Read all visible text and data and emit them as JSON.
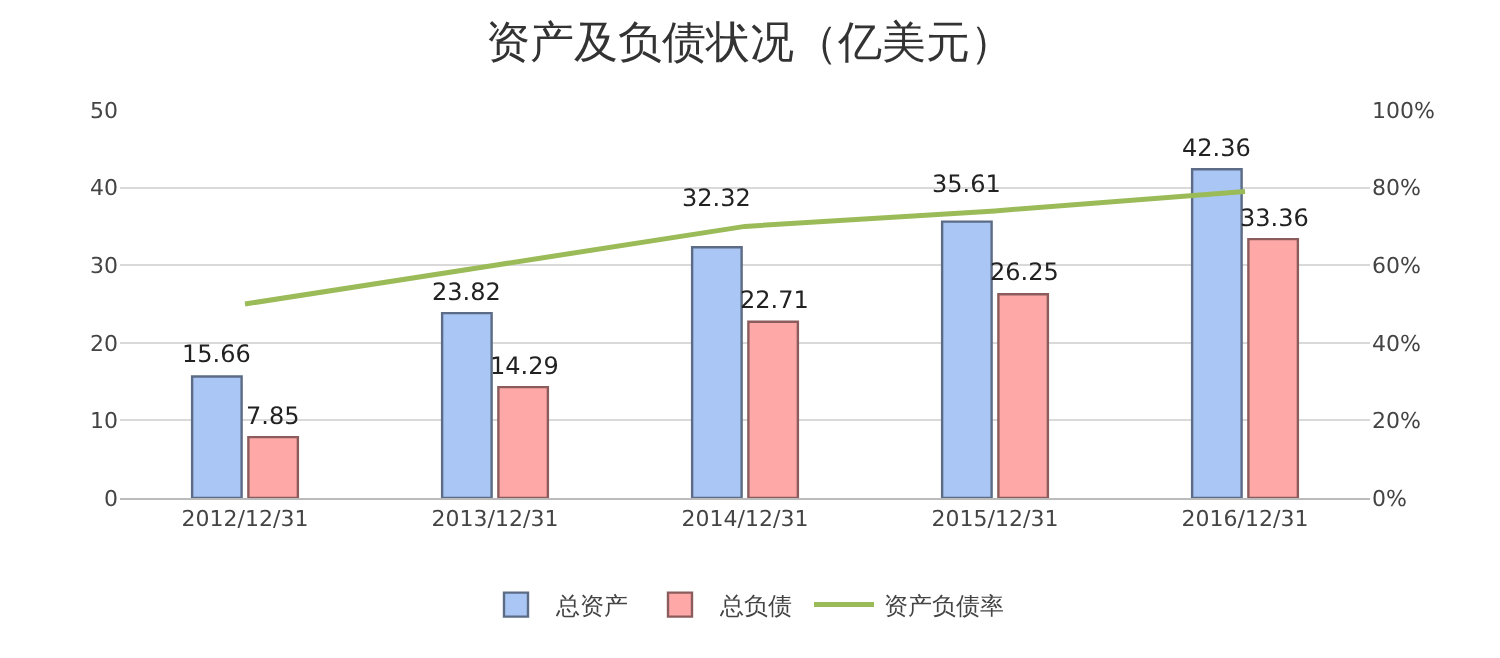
{
  "chart_data": {
    "type": "bar",
    "title": "资产及负债状况（亿美元）",
    "categories": [
      "2012/12/31",
      "2013/12/31",
      "2014/12/31",
      "2015/12/31",
      "2016/12/31"
    ],
    "series": [
      {
        "name": "总资产",
        "color": "#a9c6f5",
        "values": [
          15.66,
          23.82,
          32.32,
          35.61,
          42.36
        ],
        "value_labels": [
          "15.66",
          "23.82",
          "32.32",
          "35.61",
          "42.36"
        ]
      },
      {
        "name": "总负债",
        "color": "#ffa8a8",
        "values": [
          7.85,
          14.29,
          22.71,
          26.25,
          33.36
        ],
        "value_labels": [
          "7.85",
          "14.29",
          "22.71",
          "26.25",
          "33.36"
        ]
      },
      {
        "name": "资产负债率",
        "type": "line",
        "axis": "y2",
        "color": "#9bbb59",
        "values": [
          50,
          60,
          70,
          74,
          79
        ]
      }
    ],
    "ylim": [
      0,
      50
    ],
    "yticks": [
      0,
      10,
      20,
      30,
      40,
      50
    ],
    "y2lim": [
      0,
      100
    ],
    "y2ticks": [
      {
        "value": 0,
        "label": "0%"
      },
      {
        "value": 20,
        "label": "20%"
      },
      {
        "value": 40,
        "label": "40%"
      },
      {
        "value": 60,
        "label": "60%"
      },
      {
        "value": 80,
        "label": "80%"
      },
      {
        "value": 100,
        "label": "100%"
      }
    ],
    "grid": "y",
    "legend": "bottom",
    "marker": "none",
    "line_style": "solid"
  }
}
